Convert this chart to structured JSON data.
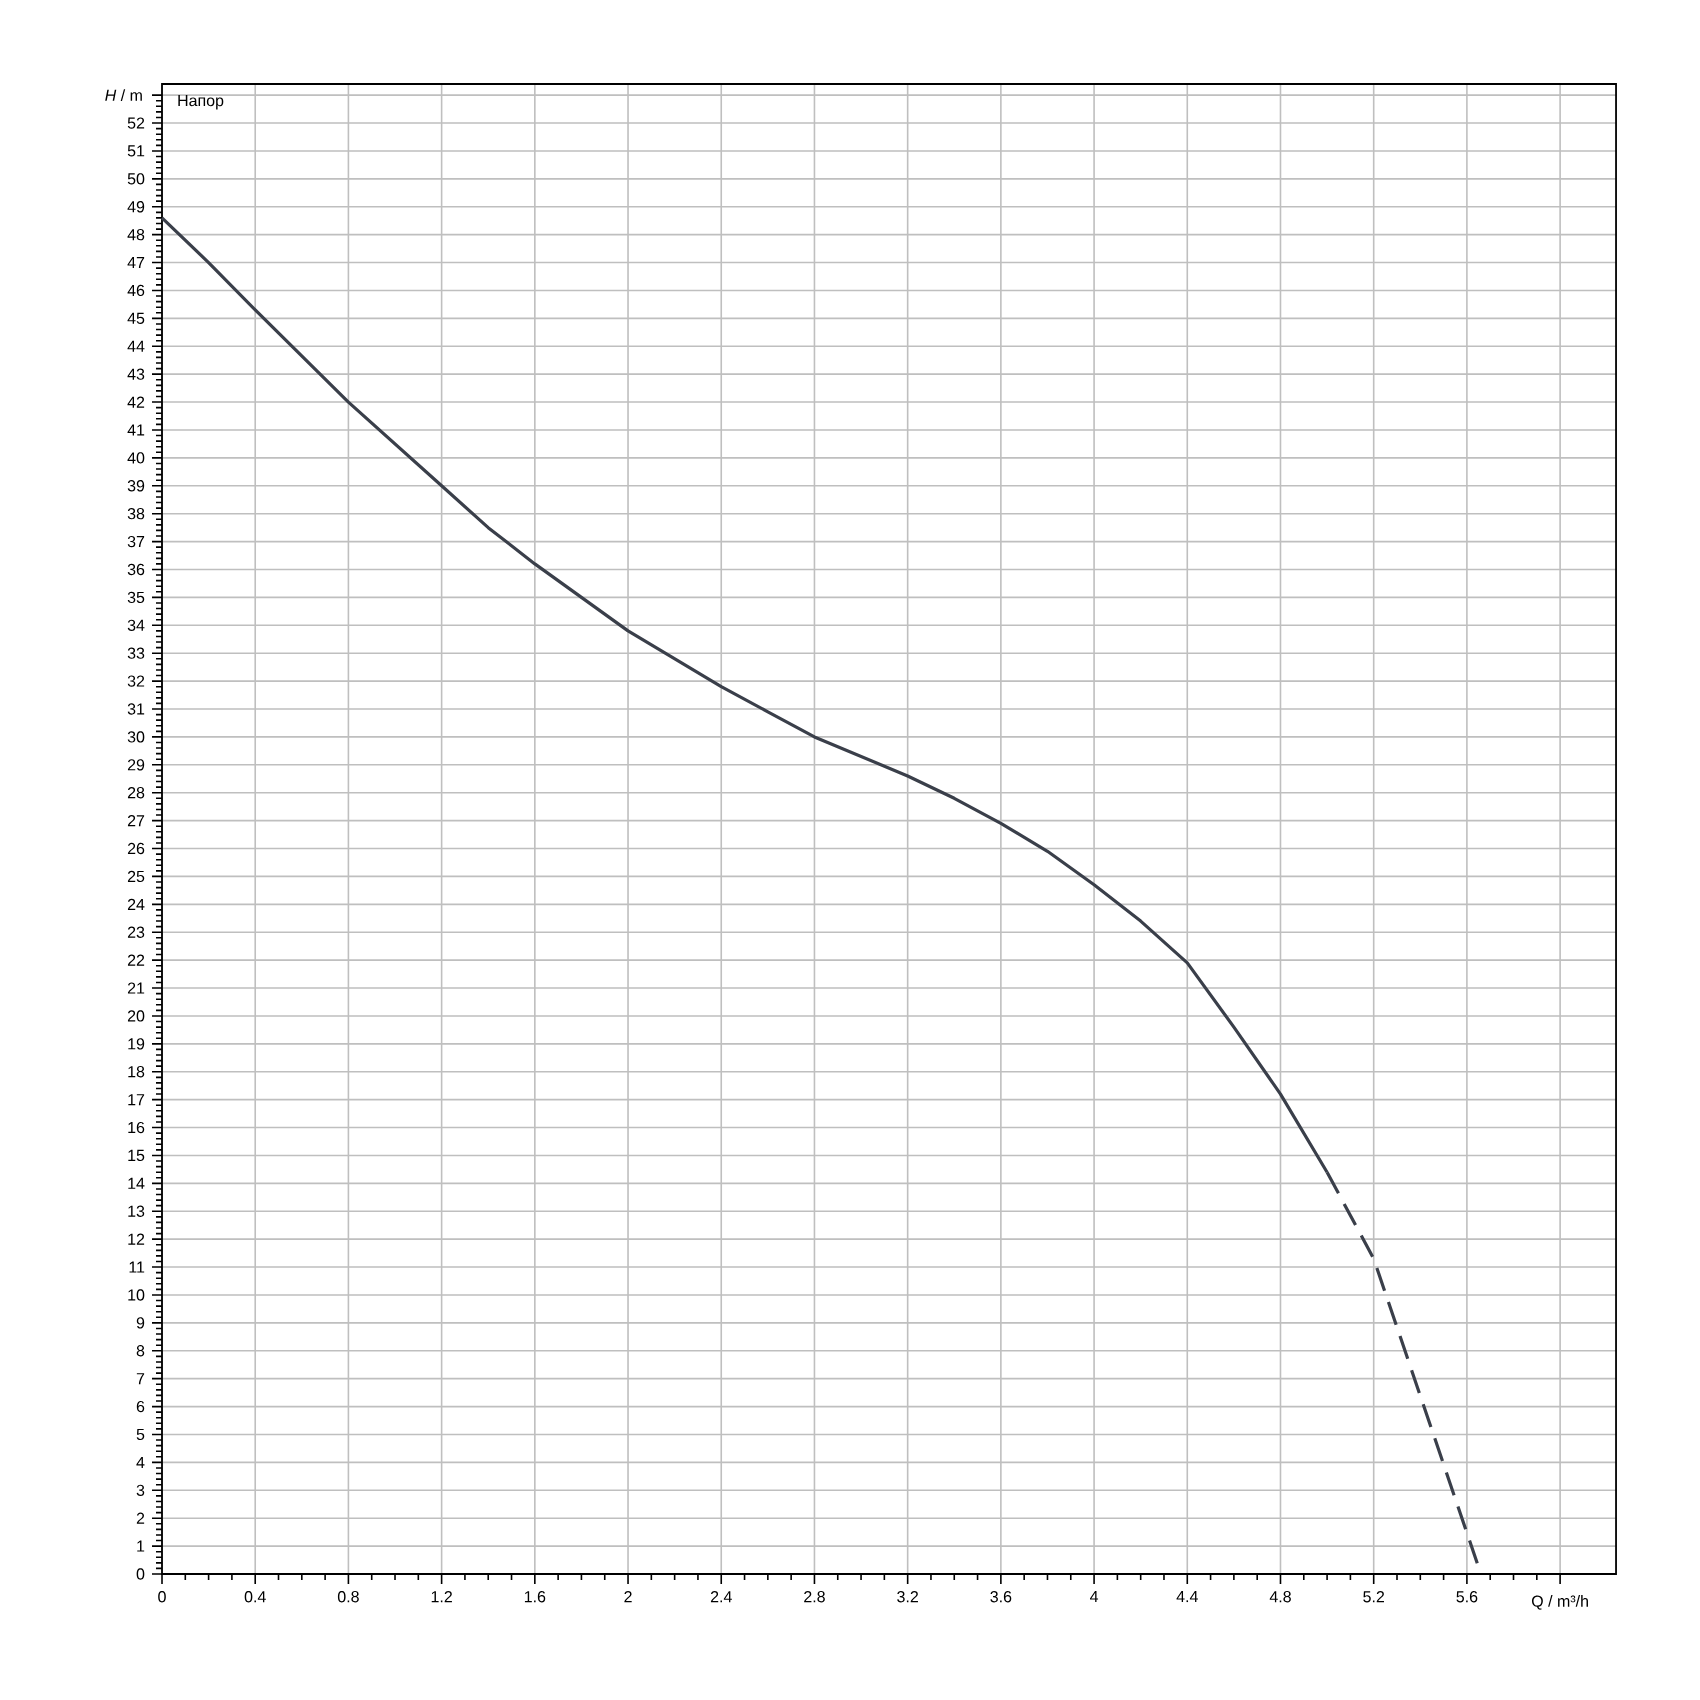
{
  "chart_data": {
    "type": "line",
    "xlabel": "Q / m³/h",
    "ylabel": "*H* / m",
    "annotations": [
      "Напор"
    ],
    "xlim": [
      0,
      6.24
    ],
    "ylim": [
      0,
      53.4
    ],
    "xticks": [
      0,
      0.4,
      0.8,
      1.2,
      1.6,
      2,
      2.4,
      2.8,
      3.2,
      3.6,
      4,
      4.4,
      4.8,
      5.2,
      5.6,
      {
        "value": 6,
        "label": null
      }
    ],
    "yticks": [
      0,
      1,
      2,
      3,
      4,
      5,
      6,
      7,
      8,
      9,
      10,
      11,
      12,
      13,
      14,
      15,
      16,
      17,
      18,
      19,
      20,
      21,
      22,
      23,
      24,
      25,
      26,
      27,
      28,
      29,
      30,
      31,
      32,
      33,
      34,
      35,
      36,
      37,
      38,
      39,
      40,
      41,
      42,
      43,
      44,
      45,
      46,
      47,
      48,
      49,
      50,
      51,
      52,
      {
        "value": 53,
        "label": null
      }
    ],
    "grid": true,
    "line_style": "solid",
    "series": [
      {
        "color": "#3a3f4a",
        "x": [
          0,
          0.2,
          0.4,
          0.8,
          1.0,
          1.2,
          1.4,
          1.6,
          1.8,
          2.0,
          2.2,
          2.4,
          2.6,
          2.8,
          3.0,
          3.2,
          3.4,
          3.6,
          3.8,
          4.0,
          4.2,
          4.4,
          4.6,
          4.8,
          5.0
        ],
        "values": [
          48.6,
          47.0,
          45.3,
          42.0,
          40.5,
          39.0,
          37.5,
          36.2,
          35.0,
          33.8,
          32.8,
          31.8,
          30.9,
          30.0,
          29.3,
          28.6,
          27.8,
          26.9,
          25.9,
          24.7,
          23.4,
          21.9,
          19.6,
          17.2,
          14.4
        ]
      },
      {
        "color": "#3a3f4a",
        "line_style": "dashed",
        "x": [
          5.0,
          5.2,
          5.66
        ],
        "values": [
          14.4,
          11.3,
          0
        ]
      }
    ]
  }
}
